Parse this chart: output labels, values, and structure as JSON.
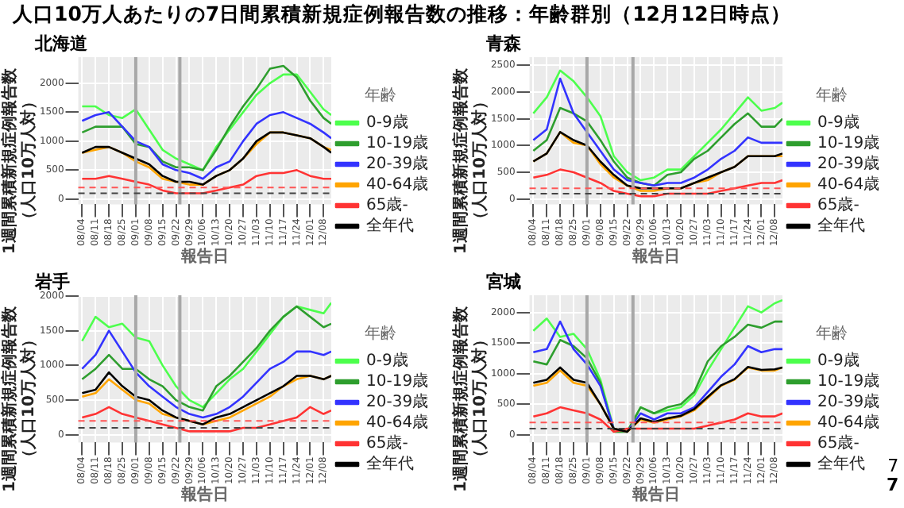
{
  "chart_data": [
    {
      "type": "line",
      "title": "北海道",
      "annotations": [
        "人口10万人あたりの7日間累積新規症例報告数の推移：年齢群別（12月12日時点）"
      ],
      "xlabel": "報告日",
      "ylabel": "1週間累積新規症例報告数（人口10万人対）",
      "legend_title": "年齢",
      "legend": "right",
      "grid": true,
      "marker": "none",
      "line_style": "solid",
      "x": [
        "--08-04",
        "--08-11",
        "--08-18",
        "--08-25",
        "--09-01",
        "--09-08",
        "--09-15",
        "--09-22",
        "--09-29",
        "--10-06",
        "--10-13",
        "--10-20",
        "--10-27",
        "--11-03",
        "--11-10",
        "--11-17",
        "--11-24",
        "--12-01",
        "--12-08",
        "--12-12"
      ],
      "xlim": [
        "--08-02",
        "--12-12"
      ],
      "xticks": [
        {
          "value": "--08-04",
          "label": "08/04"
        },
        {
          "value": "--08-11",
          "label": "08/11"
        },
        {
          "value": "--08-18",
          "label": "08/18"
        },
        {
          "value": "--08-25",
          "label": "08/25"
        },
        {
          "value": "--09-01",
          "label": "09/01"
        },
        {
          "value": "--09-08",
          "label": "09/08"
        },
        {
          "value": "--09-15",
          "label": "09/15"
        },
        {
          "value": "--09-22",
          "label": "09/22"
        },
        {
          "value": "--09-29",
          "label": "09/29"
        },
        {
          "value": "--10-06",
          "label": "10/06"
        },
        {
          "value": "--10-13",
          "label": "10/13"
        },
        {
          "value": "--10-20",
          "label": "10/20"
        },
        {
          "value": "--10-27",
          "label": "10/27"
        },
        {
          "value": "--11-03",
          "label": "11/03"
        },
        {
          "value": "--11-10",
          "label": "11/10"
        },
        {
          "value": "--11-17",
          "label": "11/17"
        },
        {
          "value": "--11-24",
          "label": "11/24"
        },
        {
          "value": "--12-01",
          "label": "12/01"
        },
        {
          "value": "--12-08",
          "label": "12/08"
        }
      ],
      "ylim": [
        -90,
        2450
      ],
      "yticks": [
        0,
        500,
        1000,
        1500,
        2000
      ],
      "ref_lines": [
        {
          "axis": "x",
          "value": "--09-01",
          "color": "#a8a8a8",
          "line_style": "solid"
        },
        {
          "axis": "x",
          "value": "--09-24",
          "color": "#a8a8a8",
          "line_style": "solid"
        },
        {
          "axis": "y",
          "value": 200,
          "color": "#ff5555",
          "line_style": "dashed"
        },
        {
          "axis": "y",
          "value": 100,
          "color": "#444444",
          "line_style": "dashed"
        }
      ],
      "series": [
        {
          "name": "0-9歳",
          "color": "#4dff4d",
          "values": [
            1600,
            1600,
            1450,
            1400,
            1550,
            1200,
            850,
            700,
            600,
            500,
            900,
            1200,
            1500,
            1800,
            2000,
            2150,
            2150,
            1850,
            1550,
            1450
          ]
        },
        {
          "name": "10-19歳",
          "color": "#2e9e2e",
          "values": [
            1150,
            1250,
            1250,
            1250,
            950,
            900,
            650,
            550,
            550,
            500,
            850,
            1250,
            1600,
            1900,
            2250,
            2300,
            2100,
            1700,
            1400,
            1300
          ]
        },
        {
          "name": "20-39歳",
          "color": "#3333ff",
          "values": [
            1350,
            1450,
            1500,
            1250,
            1000,
            900,
            600,
            500,
            450,
            350,
            550,
            650,
            1000,
            1300,
            1450,
            1500,
            1400,
            1300,
            1150,
            1050
          ]
        },
        {
          "name": "40-64歳",
          "color": "#ffa500",
          "values": [
            800,
            850,
            900,
            800,
            650,
            550,
            350,
            300,
            250,
            250,
            400,
            500,
            700,
            950,
            1150,
            1150,
            1100,
            1050,
            900,
            850
          ]
        },
        {
          "name": "65歳-",
          "color": "#ff3333",
          "values": [
            350,
            350,
            400,
            350,
            300,
            250,
            150,
            100,
            100,
            100,
            150,
            200,
            250,
            400,
            450,
            450,
            500,
            400,
            350,
            350
          ]
        },
        {
          "name": "全年代",
          "color": "#000000",
          "values": [
            800,
            900,
            900,
            800,
            700,
            600,
            400,
            300,
            300,
            250,
            400,
            500,
            700,
            1000,
            1150,
            1150,
            1100,
            1050,
            900,
            800
          ]
        }
      ]
    },
    {
      "type": "line",
      "title": "青森",
      "xlabel": "報告日",
      "ylabel": "1週間累積新規症例報告数（人口10万人対）",
      "legend_title": "年齢",
      "legend": "right",
      "grid": true,
      "marker": "none",
      "line_style": "solid",
      "x": [
        "--08-04",
        "--08-11",
        "--08-18",
        "--08-25",
        "--09-01",
        "--09-08",
        "--09-15",
        "--09-22",
        "--09-29",
        "--10-06",
        "--10-13",
        "--10-20",
        "--10-27",
        "--11-03",
        "--11-10",
        "--11-17",
        "--11-24",
        "--12-01",
        "--12-08",
        "--12-12"
      ],
      "xlim": [
        "--08-02",
        "--12-12"
      ],
      "xticks": [
        {
          "value": "--08-04",
          "label": "08/04"
        },
        {
          "value": "--08-11",
          "label": "08/11"
        },
        {
          "value": "--08-18",
          "label": "08/18"
        },
        {
          "value": "--08-25",
          "label": "08/25"
        },
        {
          "value": "--09-01",
          "label": "09/01"
        },
        {
          "value": "--09-08",
          "label": "09/08"
        },
        {
          "value": "--09-15",
          "label": "09/15"
        },
        {
          "value": "--09-22",
          "label": "09/22"
        },
        {
          "value": "--09-29",
          "label": "09/29"
        },
        {
          "value": "--10-06",
          "label": "10/06"
        },
        {
          "value": "--10-13",
          "label": "10/13"
        },
        {
          "value": "--10-20",
          "label": "10/20"
        },
        {
          "value": "--10-27",
          "label": "10/27"
        },
        {
          "value": "--11-03",
          "label": "11/03"
        },
        {
          "value": "--11-10",
          "label": "11/10"
        },
        {
          "value": "--11-17",
          "label": "11/17"
        },
        {
          "value": "--11-24",
          "label": "11/24"
        },
        {
          "value": "--12-01",
          "label": "12/01"
        },
        {
          "value": "--12-08",
          "label": "12/08"
        }
      ],
      "ylim": [
        -100,
        2650
      ],
      "yticks": [
        0,
        500,
        1000,
        1500,
        2000,
        2500
      ],
      "ref_lines": [
        {
          "axis": "x",
          "value": "--09-01",
          "color": "#a8a8a8",
          "line_style": "solid"
        },
        {
          "axis": "x",
          "value": "--09-25",
          "color": "#a8a8a8",
          "line_style": "solid"
        },
        {
          "axis": "y",
          "value": 200,
          "color": "#ff5555",
          "line_style": "dashed"
        },
        {
          "axis": "y",
          "value": 100,
          "color": "#444444",
          "line_style": "dashed"
        }
      ],
      "series": [
        {
          "name": "0-9歳",
          "color": "#4dff4d",
          "values": [
            1600,
            1900,
            2400,
            2200,
            1900,
            1550,
            800,
            500,
            350,
            400,
            550,
            550,
            800,
            1050,
            1300,
            1600,
            1900,
            1650,
            1700,
            1800
          ]
        },
        {
          "name": "10-19歳",
          "color": "#2e9e2e",
          "values": [
            900,
            1100,
            1700,
            1600,
            1450,
            1100,
            700,
            400,
            300,
            250,
            450,
            500,
            750,
            900,
            1150,
            1400,
            1600,
            1350,
            1350,
            1500
          ]
        },
        {
          "name": "20-39歳",
          "color": "#3333ff",
          "values": [
            1100,
            1300,
            2250,
            1600,
            1250,
            900,
            550,
            350,
            300,
            250,
            300,
            300,
            400,
            550,
            750,
            900,
            1150,
            1050,
            1050,
            1050
          ]
        },
        {
          "name": "40-64歳",
          "color": "#ffa500",
          "values": [
            700,
            850,
            1250,
            1050,
            1000,
            650,
            400,
            250,
            150,
            150,
            200,
            200,
            300,
            350,
            500,
            600,
            800,
            800,
            800,
            800
          ]
        },
        {
          "name": "65歳-",
          "color": "#ff3333",
          "values": [
            400,
            450,
            550,
            500,
            400,
            300,
            150,
            100,
            50,
            50,
            100,
            100,
            100,
            100,
            150,
            200,
            250,
            300,
            300,
            350
          ]
        },
        {
          "name": "全年代",
          "color": "#000000",
          "values": [
            700,
            850,
            1250,
            1100,
            1000,
            700,
            450,
            250,
            200,
            200,
            200,
            200,
            300,
            400,
            500,
            600,
            800,
            800,
            800,
            850
          ]
        }
      ]
    },
    {
      "type": "line",
      "title": "岩手",
      "xlabel": "報告日",
      "ylabel": "1週間累積新規症例報告数（人口10万人対）",
      "legend_title": "年齢",
      "legend": "right",
      "grid": true,
      "marker": "none",
      "line_style": "solid",
      "x": [
        "--08-04",
        "--08-11",
        "--08-18",
        "--08-25",
        "--09-01",
        "--09-08",
        "--09-15",
        "--09-22",
        "--09-29",
        "--10-06",
        "--10-13",
        "--10-20",
        "--10-27",
        "--11-03",
        "--11-10",
        "--11-17",
        "--11-24",
        "--12-01",
        "--12-08",
        "--12-12"
      ],
      "xlim": [
        "--08-02",
        "--12-12"
      ],
      "xticks": [
        {
          "value": "--08-04",
          "label": "08/04"
        },
        {
          "value": "--08-11",
          "label": "08/11"
        },
        {
          "value": "--08-18",
          "label": "08/18"
        },
        {
          "value": "--08-25",
          "label": "08/25"
        },
        {
          "value": "--09-01",
          "label": "09/01"
        },
        {
          "value": "--09-08",
          "label": "09/08"
        },
        {
          "value": "--09-15",
          "label": "09/15"
        },
        {
          "value": "--09-22",
          "label": "09/22"
        },
        {
          "value": "--09-29",
          "label": "09/29"
        },
        {
          "value": "--10-06",
          "label": "10/06"
        },
        {
          "value": "--10-13",
          "label": "10/13"
        },
        {
          "value": "--10-20",
          "label": "10/20"
        },
        {
          "value": "--10-27",
          "label": "10/27"
        },
        {
          "value": "--11-03",
          "label": "11/03"
        },
        {
          "value": "--11-10",
          "label": "11/10"
        },
        {
          "value": "--11-17",
          "label": "11/17"
        },
        {
          "value": "--11-24",
          "label": "11/24"
        },
        {
          "value": "--12-01",
          "label": "12/01"
        },
        {
          "value": "--12-08",
          "label": "12/08"
        }
      ],
      "ylim": [
        -110,
        2010
      ],
      "yticks": [
        0,
        500,
        1000,
        1500,
        2000
      ],
      "ref_lines": [
        {
          "axis": "x",
          "value": "--09-01",
          "color": "#a8a8a8",
          "line_style": "solid"
        },
        {
          "axis": "x",
          "value": "--09-24",
          "color": "#a8a8a8",
          "line_style": "solid"
        },
        {
          "axis": "y",
          "value": 200,
          "color": "#ff5555",
          "line_style": "dashed"
        },
        {
          "axis": "y",
          "value": 100,
          "color": "#444444",
          "line_style": "dashed"
        }
      ],
      "series": [
        {
          "name": "0-9歳",
          "color": "#4dff4d",
          "values": [
            1350,
            1700,
            1550,
            1600,
            1400,
            1350,
            1000,
            700,
            500,
            400,
            600,
            800,
            950,
            1200,
            1450,
            1700,
            1850,
            1800,
            1750,
            1900
          ]
        },
        {
          "name": "10-19歳",
          "color": "#2e9e2e",
          "values": [
            800,
            950,
            1150,
            950,
            950,
            800,
            700,
            500,
            400,
            350,
            700,
            850,
            1050,
            1250,
            1500,
            1700,
            1850,
            1700,
            1550,
            1600
          ]
        },
        {
          "name": "20-39歳",
          "color": "#3333ff",
          "values": [
            950,
            1150,
            1500,
            1200,
            900,
            700,
            550,
            400,
            300,
            250,
            300,
            400,
            550,
            750,
            950,
            1050,
            1200,
            1200,
            1150,
            1200
          ]
        },
        {
          "name": "40-64歳",
          "color": "#ffa500",
          "values": [
            550,
            600,
            800,
            650,
            500,
            450,
            300,
            250,
            200,
            150,
            200,
            250,
            350,
            450,
            550,
            700,
            800,
            850,
            800,
            850
          ]
        },
        {
          "name": "65歳-",
          "color": "#ff3333",
          "values": [
            250,
            300,
            400,
            300,
            250,
            200,
            150,
            100,
            50,
            50,
            50,
            50,
            100,
            100,
            150,
            200,
            250,
            400,
            300,
            350
          ]
        },
        {
          "name": "全年代",
          "color": "#000000",
          "values": [
            600,
            650,
            900,
            700,
            550,
            500,
            350,
            250,
            200,
            150,
            250,
            300,
            400,
            500,
            600,
            700,
            850,
            850,
            800,
            850
          ]
        }
      ]
    },
    {
      "type": "line",
      "title": "宮城",
      "annotations": [
        "7",
        "7"
      ],
      "xlabel": "報告日",
      "ylabel": "1週間累積新規症例報告数（人口10万人対）",
      "legend_title": "年齢",
      "legend": "right",
      "grid": true,
      "marker": "none",
      "line_style": "solid",
      "x": [
        "--08-04",
        "--08-11",
        "--08-18",
        "--08-25",
        "--09-01",
        "--09-08",
        "--09-15",
        "--09-22",
        "--09-29",
        "--10-06",
        "--10-13",
        "--10-20",
        "--10-27",
        "--11-03",
        "--11-10",
        "--11-17",
        "--11-24",
        "--12-01",
        "--12-08",
        "--12-12"
      ],
      "xlim": [
        "--08-02",
        "--12-12"
      ],
      "xticks": [
        {
          "value": "--08-04",
          "label": "08/04"
        },
        {
          "value": "--08-11",
          "label": "08/11"
        },
        {
          "value": "--08-18",
          "label": "08/18"
        },
        {
          "value": "--08-25",
          "label": "08/25"
        },
        {
          "value": "--09-01",
          "label": "09/01"
        },
        {
          "value": "--09-08",
          "label": "09/08"
        },
        {
          "value": "--09-15",
          "label": "09/15"
        },
        {
          "value": "--09-22",
          "label": "09/22"
        },
        {
          "value": "--09-29",
          "label": "09/29"
        },
        {
          "value": "--10-06",
          "label": "10/06"
        },
        {
          "value": "--10-13",
          "label": "10/13"
        },
        {
          "value": "--10-20",
          "label": "10/20"
        },
        {
          "value": "--10-27",
          "label": "10/27"
        },
        {
          "value": "--11-03",
          "label": "11/03"
        },
        {
          "value": "--11-10",
          "label": "11/10"
        },
        {
          "value": "--11-17",
          "label": "11/17"
        },
        {
          "value": "--11-24",
          "label": "11/24"
        },
        {
          "value": "--12-01",
          "label": "12/01"
        },
        {
          "value": "--12-08",
          "label": "12/08"
        }
      ],
      "ylim": [
        -125,
        2280
      ],
      "yticks": [
        0,
        500,
        1000,
        1500,
        2000
      ],
      "ref_lines": [
        {
          "axis": "x",
          "value": "--09-01",
          "color": "#a8a8a8",
          "line_style": "solid"
        },
        {
          "axis": "x",
          "value": "--09-25",
          "color": "#a8a8a8",
          "line_style": "solid"
        },
        {
          "axis": "y",
          "value": 200,
          "color": "#ff5555",
          "line_style": "dashed"
        },
        {
          "axis": "y",
          "value": 100,
          "color": "#444444",
          "line_style": "dashed"
        }
      ],
      "series": [
        {
          "name": "0-9歳",
          "color": "#4dff4d",
          "values": [
            1700,
            1900,
            1600,
            1650,
            1400,
            900,
            100,
            50,
            450,
            350,
            400,
            450,
            650,
            1050,
            1400,
            1750,
            2100,
            2000,
            2150,
            2200
          ]
        },
        {
          "name": "10-19歳",
          "color": "#2e9e2e",
          "values": [
            1200,
            1150,
            1550,
            1450,
            1250,
            850,
            50,
            50,
            450,
            350,
            450,
            500,
            700,
            1200,
            1450,
            1600,
            1800,
            1750,
            1850,
            1850
          ]
        },
        {
          "name": "20-39歳",
          "color": "#3333ff",
          "values": [
            1350,
            1400,
            1850,
            1400,
            1150,
            800,
            100,
            50,
            350,
            250,
            350,
            350,
            450,
            700,
            950,
            1150,
            1450,
            1350,
            1400,
            1400
          ]
        },
        {
          "name": "40-64歳",
          "color": "#ffa500",
          "values": [
            800,
            850,
            1050,
            850,
            800,
            500,
            100,
            50,
            250,
            200,
            250,
            300,
            400,
            600,
            800,
            900,
            1100,
            1050,
            1050,
            1100
          ]
        },
        {
          "name": "65歳-",
          "color": "#ff3333",
          "values": [
            300,
            350,
            450,
            400,
            350,
            250,
            50,
            100,
            100,
            100,
            100,
            100,
            100,
            150,
            200,
            250,
            350,
            300,
            300,
            350
          ]
        },
        {
          "name": "全年代",
          "color": "#000000",
          "values": [
            850,
            900,
            1100,
            900,
            850,
            500,
            100,
            50,
            270,
            210,
            270,
            310,
            420,
            620,
            810,
            910,
            1110,
            1060,
            1070,
            1100
          ]
        }
      ]
    }
  ]
}
